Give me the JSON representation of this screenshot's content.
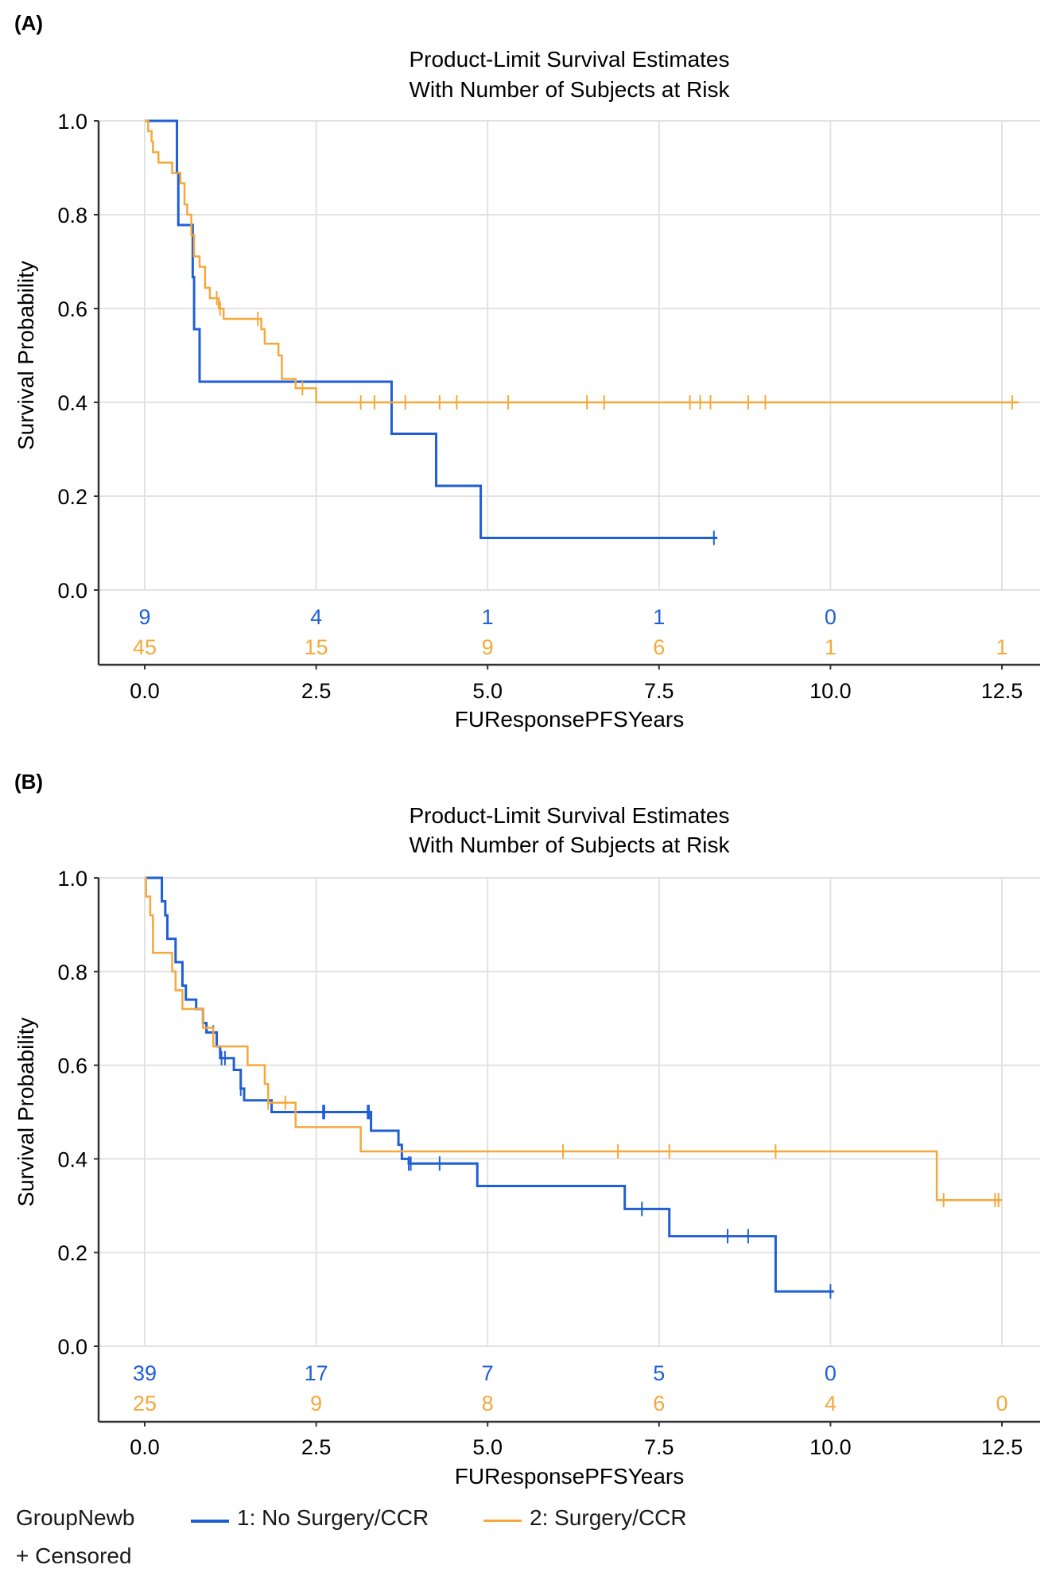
{
  "colors": {
    "group1": "#1f5fd6",
    "group2": "#f5a83c",
    "grid": "#e2e2e2",
    "axis": "#333333"
  },
  "legend": {
    "title": "GroupNewb",
    "group1": "1: No Surgery/CCR",
    "group2": "2: Surgery/CCR",
    "censored": "+ Censored"
  },
  "chart_data": [
    {
      "type": "line",
      "panel_label": "(A)",
      "title": [
        "Product-Limit Survival Estimates",
        "With Number of Subjects at Risk"
      ],
      "xlabel": "FUResponsePFSYears",
      "ylabel": "Survival Probability",
      "xlim": [
        -0.35,
        13.05
      ],
      "ylim": [
        0,
        1
      ],
      "xticks": [
        "0.0",
        "2.5",
        "5.0",
        "7.5",
        "10.0",
        "12.5"
      ],
      "yticks": [
        "0.0",
        "0.2",
        "0.4",
        "0.6",
        "0.8",
        "1.0"
      ],
      "grid": true,
      "at_risk_times": [
        0,
        2.5,
        5,
        7.5,
        10,
        12.5
      ],
      "series": [
        {
          "name": "1: No Surgery/CCR",
          "at_risk": [
            "9",
            "4",
            "1",
            "1",
            "0"
          ],
          "steps": [
            [
              0,
              1
            ],
            [
              0.47,
              0.889
            ],
            [
              0.49,
              0.778
            ],
            [
              0.7,
              0.667
            ],
            [
              0.72,
              0.556
            ],
            [
              0.8,
              0.444
            ],
            [
              3.6,
              0.333
            ],
            [
              4.25,
              0.222
            ],
            [
              4.9,
              0.111
            ]
          ],
          "end": 8.35,
          "censored": [
            8.3
          ]
        },
        {
          "name": "2: Surgery/CCR",
          "at_risk": [
            "45",
            "15",
            "9",
            "6",
            "1",
            "1"
          ],
          "steps": [
            [
              0,
              1
            ],
            [
              0.05,
              0.978
            ],
            [
              0.1,
              0.956
            ],
            [
              0.12,
              0.933
            ],
            [
              0.2,
              0.911
            ],
            [
              0.4,
              0.889
            ],
            [
              0.52,
              0.867
            ],
            [
              0.58,
              0.822
            ],
            [
              0.62,
              0.8
            ],
            [
              0.68,
              0.756
            ],
            [
              0.72,
              0.711
            ],
            [
              0.8,
              0.689
            ],
            [
              0.88,
              0.644
            ],
            [
              0.95,
              0.622
            ],
            [
              1.08,
              0.6
            ],
            [
              1.15,
              0.578
            ],
            [
              1.7,
              0.556
            ],
            [
              1.75,
              0.525
            ],
            [
              1.95,
              0.5
            ],
            [
              2.0,
              0.45
            ],
            [
              2.2,
              0.43
            ],
            [
              2.5,
              0.4
            ]
          ],
          "end": 12.75,
          "censored": [
            1.05,
            1.1,
            1.65,
            2.3,
            3.15,
            3.35,
            3.8,
            4.3,
            4.55,
            5.3,
            6.45,
            6.7,
            7.95,
            8.1,
            8.25,
            8.8,
            9.05,
            12.65
          ]
        }
      ]
    },
    {
      "type": "line",
      "panel_label": "(B)",
      "title": [
        "Product-Limit Survival Estimates",
        "With Number of Subjects at Risk"
      ],
      "xlabel": "FUResponsePFSYears",
      "ylabel": "Survival Probability",
      "xlim": [
        -0.35,
        13.05
      ],
      "ylim": [
        0,
        1
      ],
      "xticks": [
        "0.0",
        "2.5",
        "5.0",
        "7.5",
        "10.0",
        "12.5"
      ],
      "yticks": [
        "0.0",
        "0.2",
        "0.4",
        "0.6",
        "0.8",
        "1.0"
      ],
      "grid": true,
      "at_risk_times": [
        0,
        2.5,
        5,
        7.5,
        10,
        12.5
      ],
      "series": [
        {
          "name": "1: No Surgery/CCR",
          "at_risk": [
            "39",
            "17",
            "7",
            "5",
            "0"
          ],
          "steps": [
            [
              0,
              1
            ],
            [
              0.25,
              0.95
            ],
            [
              0.3,
              0.92
            ],
            [
              0.33,
              0.87
            ],
            [
              0.45,
              0.82
            ],
            [
              0.55,
              0.77
            ],
            [
              0.6,
              0.74
            ],
            [
              0.75,
              0.72
            ],
            [
              0.85,
              0.69
            ],
            [
              0.9,
              0.67
            ],
            [
              1.05,
              0.64
            ],
            [
              1.1,
              0.615
            ],
            [
              1.3,
              0.59
            ],
            [
              1.4,
              0.55
            ],
            [
              1.45,
              0.525
            ],
            [
              1.85,
              0.5
            ],
            [
              3.3,
              0.46
            ],
            [
              3.7,
              0.43
            ],
            [
              3.75,
              0.4
            ],
            [
              3.85,
              0.39
            ],
            [
              4.85,
              0.342
            ],
            [
              7.0,
              0.293
            ],
            [
              7.65,
              0.235
            ],
            [
              9.2,
              0.117
            ]
          ],
          "end": 10.05,
          "censored": [
            1.0,
            1.12,
            1.17,
            1.4,
            2.6,
            2.62,
            3.25,
            3.27,
            3.85,
            3.88,
            4.3,
            7.25,
            8.5,
            8.8,
            10.0
          ]
        },
        {
          "name": "2: Surgery/CCR",
          "at_risk": [
            "25",
            "9",
            "8",
            "6",
            "4",
            "0"
          ],
          "steps": [
            [
              0,
              1
            ],
            [
              0.02,
              0.96
            ],
            [
              0.08,
              0.92
            ],
            [
              0.12,
              0.84
            ],
            [
              0.4,
              0.8
            ],
            [
              0.45,
              0.76
            ],
            [
              0.55,
              0.72
            ],
            [
              0.85,
              0.68
            ],
            [
              1.0,
              0.64
            ],
            [
              1.5,
              0.6
            ],
            [
              1.75,
              0.56
            ],
            [
              1.8,
              0.52
            ],
            [
              2.2,
              0.468
            ],
            [
              3.15,
              0.416
            ],
            [
              11.55,
              0.312
            ]
          ],
          "end": 12.5,
          "censored": [
            1.8,
            2.05,
            6.1,
            6.9,
            7.65,
            9.2,
            11.65,
            12.4,
            12.45
          ]
        }
      ]
    }
  ]
}
